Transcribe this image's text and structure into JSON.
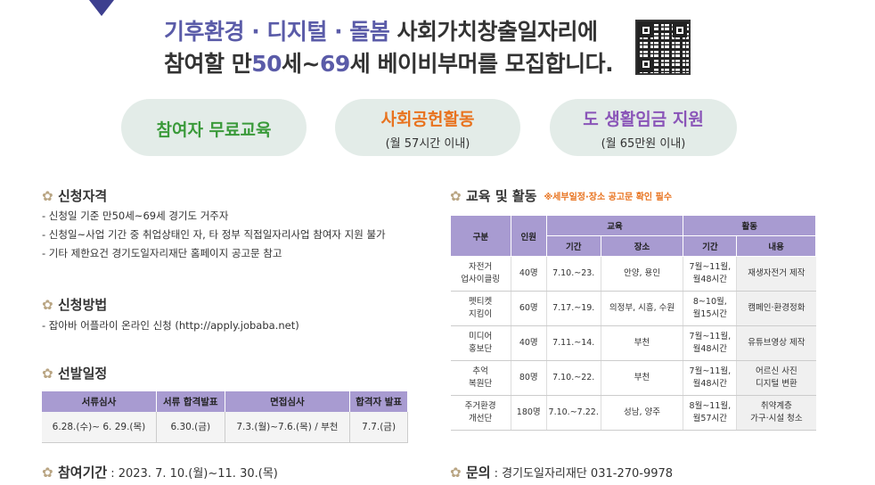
{
  "headline": {
    "line1_hl": "기후환경 · 디지털 · 돌봄",
    "line1_rest": " 사회가치창출일자리에",
    "line2_a": "참여할 만",
    "line2_n1": "50",
    "line2_b": "세~",
    "line2_n2": "69",
    "line2_c": "세 베이비부머를 모집합니다."
  },
  "pills": [
    {
      "title": "참여자 무료교육",
      "sub": ""
    },
    {
      "title": "사회공헌활동",
      "sub": "(월 57시간 이내)"
    },
    {
      "title": "도 생활임금 지원",
      "sub": "(월 65만원 이내)"
    }
  ],
  "eligibility": {
    "title": "신청자격",
    "items": [
      "- 신청일 기준 만50세~69세 경기도 거주자",
      "- 신청일~사업 기간 중 취업상태인 자, 타 정부 직접일자리사업 참여자 지원 불가",
      "- 기타 제한요건 경기도일자리재단 홈페이지 공고문 참고"
    ]
  },
  "method": {
    "title": "신청방법",
    "items": [
      "- 잡아바 어플라이 온라인 신청 (http://apply.jobaba.net)"
    ]
  },
  "schedule": {
    "title": "선발일정",
    "headers": [
      "서류심사",
      "서류 합격발표",
      "면접심사",
      "합격자 발표"
    ],
    "values": [
      "6.28.(수)~ 6. 29.(목)",
      "6.30.(금)",
      "7.3.(월)~7.6.(목) / 부천",
      "7.7.(금)"
    ]
  },
  "period": {
    "label": "참여기간",
    "value": " : 2023. 7. 10.(월)~11. 30.(목)"
  },
  "edu": {
    "title": "교육 및 활동",
    "note": "※세부일정·장소 공고문 확인 필수",
    "headers": {
      "group": "구분",
      "people": "인원",
      "edu": "교육",
      "act": "활동",
      "period": "기간",
      "place": "장소",
      "aperiod": "기간",
      "content": "내용"
    },
    "rows": [
      {
        "name1": "자전거",
        "name2": "업사이클링",
        "people": "40명",
        "period": "7.10.~23.",
        "place": "안양, 용인",
        "a1": "7월~11월,",
        "a2": "월48시간",
        "c1": "재생자전거 제작",
        "c2": ""
      },
      {
        "name1": "펫티켓",
        "name2": "지킴이",
        "people": "60명",
        "period": "7.17.~19.",
        "place": "의정부, 시흥, 수원",
        "a1": "8~10월,",
        "a2": "월15시간",
        "c1": "캠페인·환경정화",
        "c2": ""
      },
      {
        "name1": "미디어",
        "name2": "홍보단",
        "people": "40명",
        "period": "7.11.~14.",
        "place": "부천",
        "a1": "7월~11월,",
        "a2": "월48시간",
        "c1": "유튜브영상 제작",
        "c2": ""
      },
      {
        "name1": "추억",
        "name2": "복원단",
        "people": "80명",
        "period": "7.10.~22.",
        "place": "부천",
        "a1": "7월~11월,",
        "a2": "월48시간",
        "c1": "어르신 사진",
        "c2": "디지털 변환"
      },
      {
        "name1": "주거환경",
        "name2": "개선단",
        "people": "180명",
        "period": "7.10.~7.22.",
        "place": "성남, 양주",
        "a1": "8월~11월,",
        "a2": "월57시간",
        "c1": "취약계층",
        "c2": "가구·시설 청소"
      }
    ]
  },
  "contact": {
    "label": "문의",
    "value": " : 경기도일자리재단 031-270-9978"
  }
}
